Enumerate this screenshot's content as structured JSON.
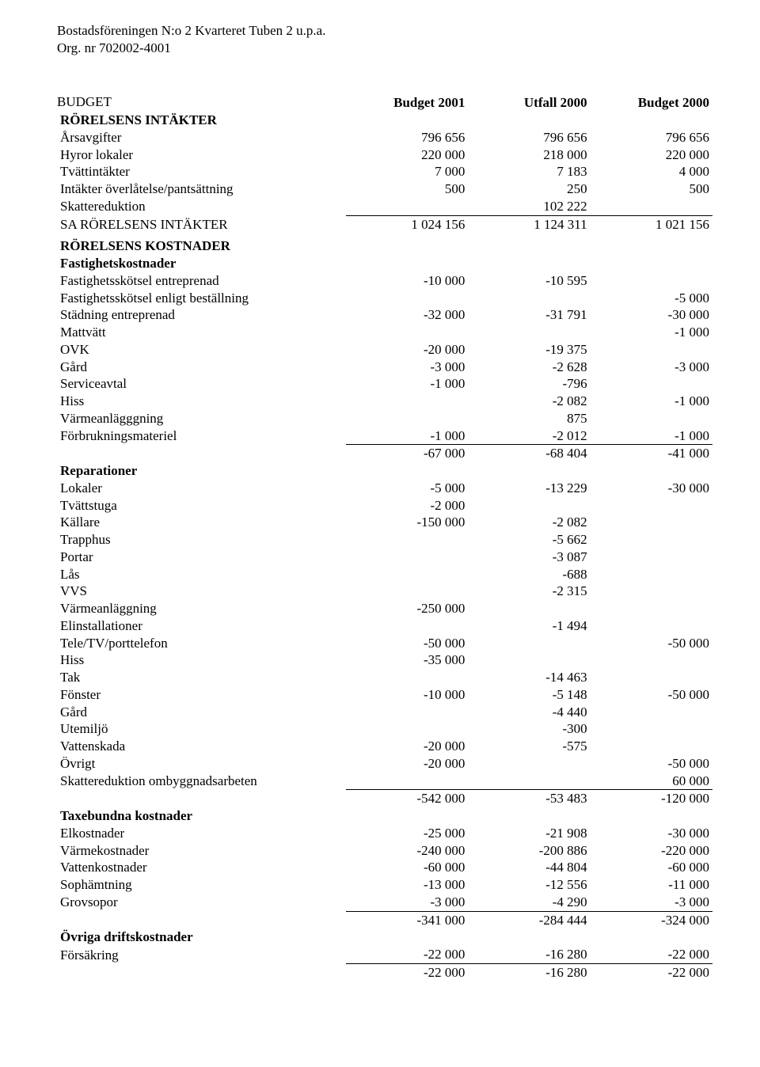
{
  "org": {
    "line1": "Bostadsföreningen N:o 2 Kvarteret Tuben 2 u.p.a.",
    "line2": "Org. nr 702002-4001"
  },
  "title": "BUDGET",
  "columns": {
    "c1": "Budget 2001",
    "c2": "Utfall 2000",
    "c3": "Budget 2000"
  },
  "sections": {
    "intakter_heading": "RÖRELSENS INTÄKTER",
    "kostnader_heading": "RÖRELSENS KOSTNADER",
    "fastighetskostnader": "Fastighetskostnader",
    "reparationer": "Reparationer",
    "taxebundna": "Taxebundna kostnader",
    "ovriga": "Övriga driftskostnader"
  },
  "rows": {
    "arsavgifter": {
      "label": "Årsavgifter",
      "c1": "796 656",
      "c2": "796 656",
      "c3": "796 656"
    },
    "hyror": {
      "label": "Hyror lokaler",
      "c1": "220 000",
      "c2": "218 000",
      "c3": "220 000"
    },
    "tvattintakter": {
      "label": "Tvättintäkter",
      "c1": "7 000",
      "c2": "7 183",
      "c3": "4 000"
    },
    "overlat": {
      "label": "Intäkter överlåtelse/pantsättning",
      "c1": "500",
      "c2": "250",
      "c3": "500"
    },
    "skatteredukt1": {
      "label": "Skattereduktion",
      "c1": "",
      "c2": "102 222",
      "c3": ""
    },
    "sa_intakter": {
      "label": "SA RÖRELSENS INTÄKTER",
      "c1": "1 024 156",
      "c2": "1 124 311",
      "c3": "1 021 156"
    },
    "fsk_entr": {
      "label": "Fastighetsskötsel entreprenad",
      "c1": "-10 000",
      "c2": "-10 595",
      "c3": ""
    },
    "fsk_bestall": {
      "label": "Fastighetsskötsel enligt beställning",
      "c1": "",
      "c2": "",
      "c3": "-5 000"
    },
    "stadning": {
      "label": "Städning entreprenad",
      "c1": "-32 000",
      "c2": "-31 791",
      "c3": "-30 000"
    },
    "mattvatt": {
      "label": "Mattvätt",
      "c1": "",
      "c2": "",
      "c3": "-1 000"
    },
    "ovk": {
      "label": "OVK",
      "c1": "-20 000",
      "c2": "-19 375",
      "c3": ""
    },
    "gard1": {
      "label": "Gård",
      "c1": "-3 000",
      "c2": "-2 628",
      "c3": "-3 000"
    },
    "serviceavtal": {
      "label": "Serviceavtal",
      "c1": "-1 000",
      "c2": "-796",
      "c3": ""
    },
    "hiss1": {
      "label": "Hiss",
      "c1": "",
      "c2": "-2 082",
      "c3": "-1 000"
    },
    "varmeanl1": {
      "label": "Värmeanlägggning",
      "c1": "",
      "c2": "875",
      "c3": ""
    },
    "forbruk": {
      "label": "Förbrukningsmateriel",
      "c1": "-1 000",
      "c2": "-2 012",
      "c3": "-1 000"
    },
    "fk_sum": {
      "label": "",
      "c1": "-67 000",
      "c2": "-68 404",
      "c3": "-41 000"
    },
    "lokaler": {
      "label": "Lokaler",
      "c1": "-5 000",
      "c2": "-13 229",
      "c3": "-30 000"
    },
    "tvattstuga": {
      "label": "Tvättstuga",
      "c1": "-2 000",
      "c2": "",
      "c3": ""
    },
    "kallare": {
      "label": "Källare",
      "c1": "-150 000",
      "c2": "-2 082",
      "c3": ""
    },
    "trapphus": {
      "label": "Trapphus",
      "c1": "",
      "c2": "-5 662",
      "c3": ""
    },
    "portar": {
      "label": "Portar",
      "c1": "",
      "c2": "-3 087",
      "c3": ""
    },
    "las": {
      "label": "Lås",
      "c1": "",
      "c2": "-688",
      "c3": ""
    },
    "vvs": {
      "label": "VVS",
      "c1": "",
      "c2": "-2 315",
      "c3": ""
    },
    "varmeanl2": {
      "label": "Värmeanläggning",
      "c1": "-250 000",
      "c2": "",
      "c3": ""
    },
    "elinst": {
      "label": "Elinstallationer",
      "c1": "",
      "c2": "-1 494",
      "c3": ""
    },
    "teletv": {
      "label": "Tele/TV/porttelefon",
      "c1": "-50 000",
      "c2": "",
      "c3": "-50 000"
    },
    "hiss2": {
      "label": "Hiss",
      "c1": "-35 000",
      "c2": "",
      "c3": ""
    },
    "tak": {
      "label": "Tak",
      "c1": "",
      "c2": "-14 463",
      "c3": ""
    },
    "fonster": {
      "label": "Fönster",
      "c1": "-10 000",
      "c2": "-5 148",
      "c3": "-50 000"
    },
    "gard2": {
      "label": "Gård",
      "c1": "",
      "c2": "-4 440",
      "c3": ""
    },
    "utemiljo": {
      "label": "Utemiljö",
      "c1": "",
      "c2": "-300",
      "c3": ""
    },
    "vattenskada": {
      "label": "Vattenskada",
      "c1": "-20 000",
      "c2": "-575",
      "c3": ""
    },
    "ovrigt": {
      "label": "Övrigt",
      "c1": "-20 000",
      "c2": "",
      "c3": "-50 000"
    },
    "skatteredukt2": {
      "label": "Skattereduktion ombyggnadsarbeten",
      "c1": "",
      "c2": "",
      "c3": "60 000"
    },
    "rep_sum": {
      "label": "",
      "c1": "-542 000",
      "c2": "-53 483",
      "c3": "-120 000"
    },
    "elkost": {
      "label": "Elkostnader",
      "c1": "-25 000",
      "c2": "-21 908",
      "c3": "-30 000"
    },
    "varmekost": {
      "label": "Värmekostnader",
      "c1": "-240 000",
      "c2": "-200 886",
      "c3": "-220 000"
    },
    "vattenkost": {
      "label": "Vattenkostnader",
      "c1": "-60 000",
      "c2": "-44 804",
      "c3": "-60 000"
    },
    "sophamt": {
      "label": "Sophämtning",
      "c1": "-13 000",
      "c2": "-12 556",
      "c3": "-11 000"
    },
    "grovsopor": {
      "label": "Grovsopor",
      "c1": "-3 000",
      "c2": "-4 290",
      "c3": "-3 000"
    },
    "tax_sum": {
      "label": "",
      "c1": "-341 000",
      "c2": "-284 444",
      "c3": "-324 000"
    },
    "forsakring": {
      "label": "Försäkring",
      "c1": "-22 000",
      "c2": "-16 280",
      "c3": "-22 000"
    },
    "ovr_sum": {
      "label": "",
      "c1": "-22 000",
      "c2": "-16 280",
      "c3": "-22 000"
    }
  }
}
